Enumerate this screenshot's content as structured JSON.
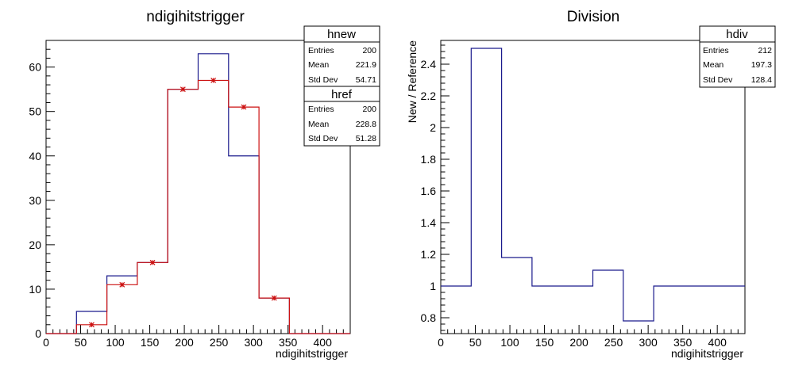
{
  "chart_data": [
    {
      "type": "histogram",
      "title": "ndigihitstrigger",
      "xlabel": "ndigihitstrigger",
      "ylabel": "",
      "xlim": [
        0,
        440
      ],
      "ylim": [
        0,
        66
      ],
      "bin_edges": [
        0,
        44,
        88,
        132,
        176,
        220,
        264,
        308,
        352,
        396,
        440
      ],
      "x_ticks": [
        "0",
        "50",
        "100",
        "150",
        "200",
        "250",
        "300",
        "350",
        "400"
      ],
      "y_ticks": [
        "0",
        "10",
        "20",
        "30",
        "40",
        "50",
        "60"
      ],
      "series": [
        {
          "name": "hnew",
          "style": "step",
          "color": "#1a1a8c",
          "values": [
            0,
            5,
            13,
            16,
            55,
            63,
            40,
            8,
            0,
            0
          ]
        },
        {
          "name": "href",
          "style": "step-with-markers",
          "color": "#cc1111",
          "values": [
            0,
            2,
            11,
            16,
            55,
            57,
            51,
            8,
            0,
            0
          ]
        }
      ],
      "stats_boxes": [
        {
          "name": "hnew",
          "entries": "200",
          "mean": "221.9",
          "std_dev": "54.71"
        },
        {
          "name": "href",
          "entries": "200",
          "mean": "228.8",
          "std_dev": "51.28"
        }
      ],
      "stat_labels": {
        "entries": "Entries",
        "mean": "Mean",
        "std_dev": "Std Dev"
      }
    },
    {
      "type": "histogram",
      "title": "Division",
      "xlabel": "ndigihitstrigger",
      "ylabel": "New / Reference",
      "xlim": [
        0,
        440
      ],
      "ylim": [
        0.7,
        2.55
      ],
      "bin_edges": [
        0,
        44,
        88,
        132,
        176,
        220,
        264,
        308,
        352,
        396,
        440
      ],
      "x_ticks": [
        "0",
        "50",
        "100",
        "150",
        "200",
        "250",
        "300",
        "350",
        "400"
      ],
      "y_ticks": [
        "0.8",
        "1",
        "1.2",
        "1.4",
        "1.6",
        "1.8",
        "2",
        "2.2",
        "2.4"
      ],
      "series": [
        {
          "name": "hdiv",
          "style": "step",
          "color": "#1a1a8c",
          "values": [
            1,
            2.5,
            1.18,
            1,
            1,
            1.1,
            0.78,
            1,
            1,
            1
          ]
        }
      ],
      "stats_boxes": [
        {
          "name": "hdiv",
          "entries": "212",
          "mean": "197.3",
          "std_dev": "128.4"
        }
      ],
      "stat_labels": {
        "entries": "Entries",
        "mean": "Mean",
        "std_dev": "Std Dev"
      }
    }
  ]
}
